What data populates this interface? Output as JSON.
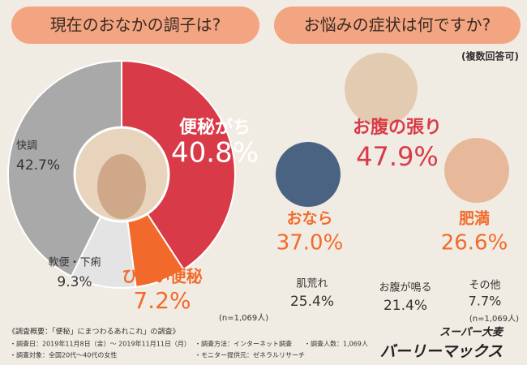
{
  "chart_data": {
    "type": "pie",
    "title": "現在のおなかの調子は?",
    "categories": [
      "便秘がち",
      "ひどい便秘",
      "軟便・下痢",
      "快調"
    ],
    "values": [
      40.8,
      7.2,
      9.3,
      42.7
    ],
    "value_labels": [
      "40.8%",
      "7.2%",
      "9.3%",
      "42.7%"
    ],
    "colors": [
      "#d93a48",
      "#f26a2b",
      "#e4e4e4",
      "#a9a9a9"
    ],
    "note": "(n=1,069人)"
  },
  "symptoms": {
    "title": "お悩みの症状は何ですか?",
    "subtitle": "(複数回答可)",
    "items": [
      {
        "name": "お腹の張り",
        "value": "47.9%"
      },
      {
        "name": "おなら",
        "value": "37.0%"
      },
      {
        "name": "肥満",
        "value": "26.6%"
      },
      {
        "name": "肌荒れ",
        "value": "25.4%"
      },
      {
        "name": "お腹が鳴る",
        "value": "21.4%"
      },
      {
        "name": "その他",
        "value": "7.7%"
      }
    ],
    "note": "(n=1,069人)"
  },
  "footer": {
    "heading": "《調査概要：「便秘」にまつわるあれこれ」の調査》",
    "lines": [
      "・調査日：2019年11月8日（金）～ 2019年11月11日（月）",
      "・調査方法：インターネット調査",
      "・調査人数：1,069人",
      "・調査対象：全国20代～40代の女性",
      "・モニター提供元：ゼネラルリサーチ"
    ],
    "brand_top": "スーパー大麦",
    "brand": "バーリーマックス"
  }
}
